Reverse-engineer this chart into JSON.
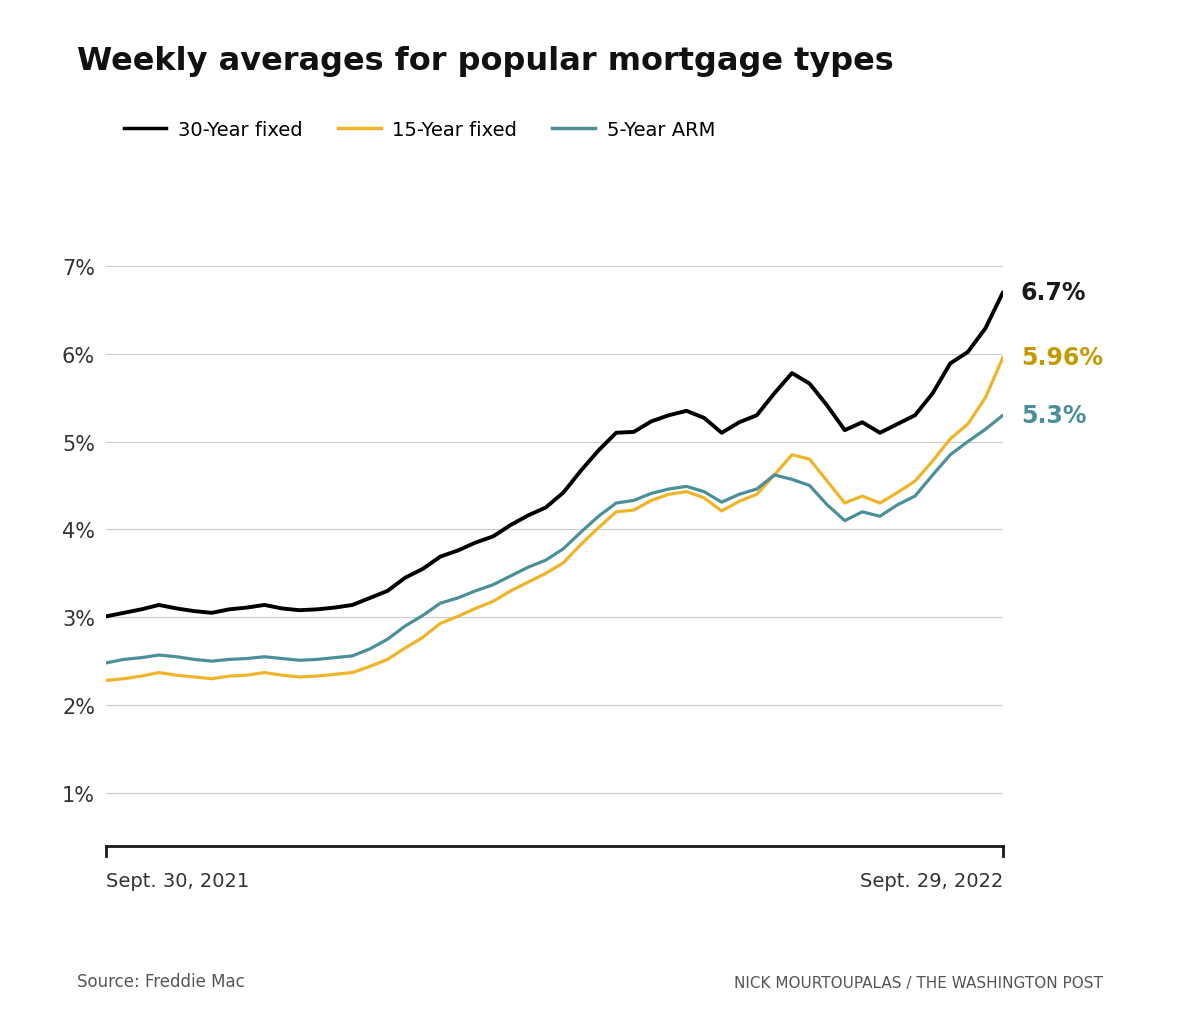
{
  "title": "Weekly averages for popular mortgage types",
  "legend_labels": [
    "30-Year fixed",
    "15-Year fixed",
    "5-Year ARM"
  ],
  "line_colors": [
    "#000000",
    "#f0b429",
    "#4a8f99"
  ],
  "end_labels": [
    "6.7%",
    "5.96%",
    "5.3%"
  ],
  "end_label_colors": [
    "#1a1a1a",
    "#c49a00",
    "#4a8f99"
  ],
  "x_start_label": "Sept. 30, 2021",
  "x_end_label": "Sept. 29, 2022",
  "source_label": "Source: Freddie Mac",
  "credit_label": "NICK MOURTOUPALAS / THE WASHINGTON POST",
  "yticks": [
    1,
    2,
    3,
    4,
    5,
    6,
    7
  ],
  "ytick_labels": [
    "1%",
    "2%",
    "3%",
    "4%",
    "5%",
    "6%",
    "7%"
  ],
  "ymin": 0.4,
  "ymax": 7.6,
  "background_color": "#ffffff",
  "grid_color": "#cccccc",
  "thirty_year": [
    3.01,
    3.05,
    3.09,
    3.14,
    3.1,
    3.07,
    3.05,
    3.09,
    3.11,
    3.14,
    3.1,
    3.08,
    3.09,
    3.11,
    3.14,
    3.22,
    3.3,
    3.45,
    3.55,
    3.69,
    3.76,
    3.85,
    3.92,
    4.05,
    4.16,
    4.25,
    4.42,
    4.67,
    4.9,
    5.1,
    5.11,
    5.23,
    5.3,
    5.35,
    5.27,
    5.1,
    5.22,
    5.3,
    5.55,
    5.78,
    5.66,
    5.41,
    5.13,
    5.22,
    5.1,
    5.2,
    5.3,
    5.55,
    5.89,
    6.02,
    6.29,
    6.7
  ],
  "fifteen_year": [
    2.28,
    2.3,
    2.33,
    2.37,
    2.34,
    2.32,
    2.3,
    2.33,
    2.34,
    2.37,
    2.34,
    2.32,
    2.33,
    2.35,
    2.37,
    2.44,
    2.52,
    2.65,
    2.77,
    2.93,
    3.01,
    3.1,
    3.18,
    3.3,
    3.4,
    3.5,
    3.62,
    3.83,
    4.02,
    4.2,
    4.22,
    4.33,
    4.4,
    4.43,
    4.36,
    4.21,
    4.32,
    4.4,
    4.62,
    4.85,
    4.8,
    4.55,
    4.3,
    4.38,
    4.3,
    4.42,
    4.55,
    4.78,
    5.03,
    5.2,
    5.5,
    5.96
  ],
  "five_year_arm": [
    2.48,
    2.52,
    2.54,
    2.57,
    2.55,
    2.52,
    2.5,
    2.52,
    2.53,
    2.55,
    2.53,
    2.51,
    2.52,
    2.54,
    2.56,
    2.64,
    2.75,
    2.9,
    3.02,
    3.16,
    3.22,
    3.3,
    3.37,
    3.47,
    3.57,
    3.65,
    3.78,
    3.97,
    4.15,
    4.3,
    4.33,
    4.41,
    4.46,
    4.49,
    4.43,
    4.31,
    4.4,
    4.46,
    4.62,
    4.57,
    4.5,
    4.28,
    4.1,
    4.2,
    4.15,
    4.28,
    4.38,
    4.62,
    4.85,
    5.0,
    5.14,
    5.3
  ]
}
